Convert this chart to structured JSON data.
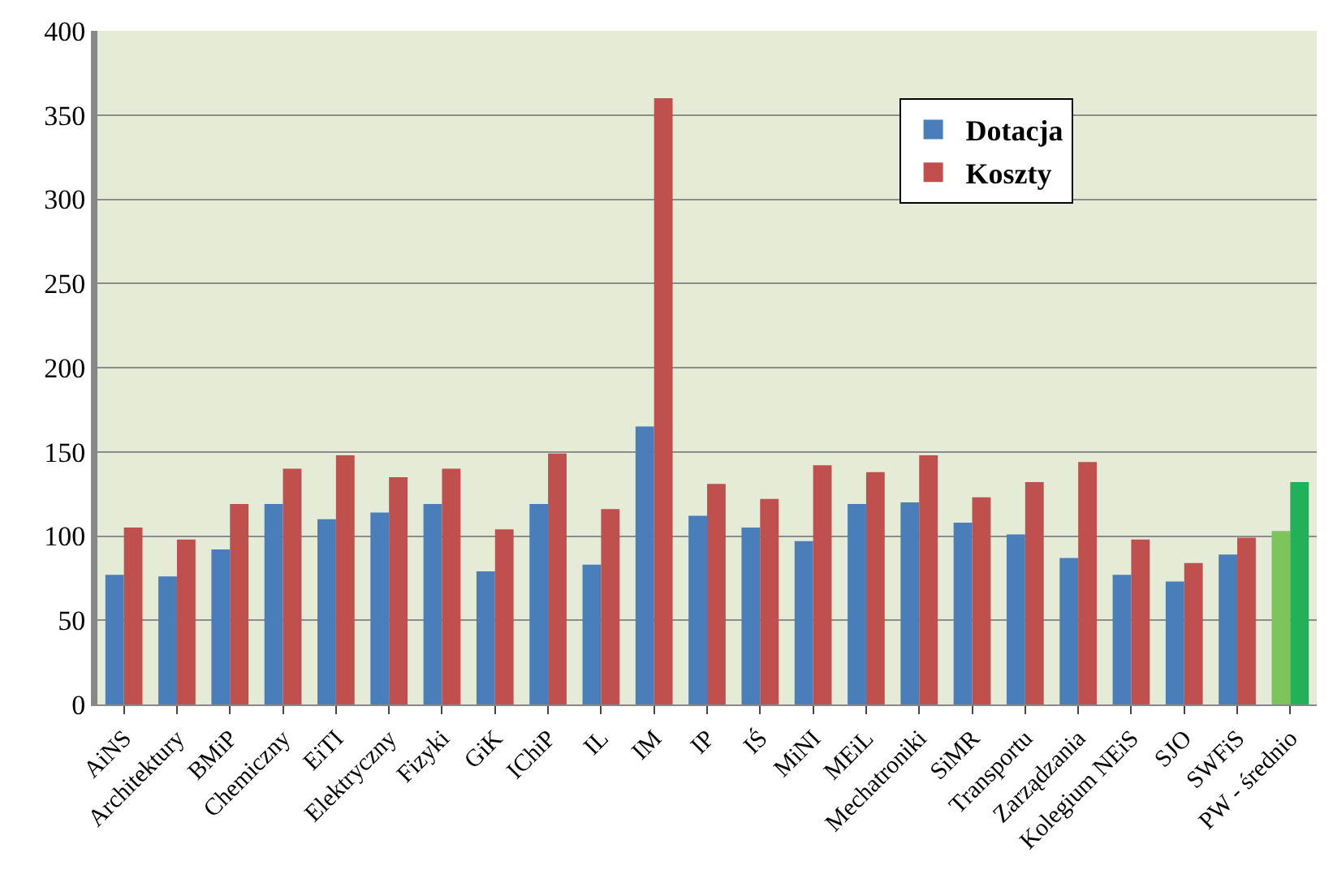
{
  "chart_data": {
    "type": "bar",
    "categories": [
      "AiNS",
      "Architektury",
      "BMiP",
      "Chemiczny",
      "EiTI",
      "Elektryczny",
      "Fizyki",
      "GiK",
      "IChiP",
      "IL",
      "IM",
      "IP",
      "IŚ",
      "MiNI",
      "MEiL",
      "Mechatroniki",
      "SiMR",
      "Transportu",
      "Zarządzania",
      "Kolegium NEiS",
      "SJO",
      "SWFiS",
      "PW - średnio"
    ],
    "series": [
      {
        "name": "Dotacja",
        "color": "#4a7ebb",
        "colors": [
          null,
          null,
          null,
          null,
          null,
          null,
          null,
          null,
          null,
          null,
          null,
          null,
          null,
          null,
          null,
          null,
          null,
          null,
          null,
          null,
          null,
          null,
          "#7dc45c"
        ],
        "values": [
          77,
          76,
          92,
          119,
          110,
          114,
          119,
          79,
          119,
          83,
          165,
          112,
          105,
          97,
          119,
          120,
          108,
          101,
          87,
          77,
          73,
          89,
          103
        ]
      },
      {
        "name": "Koszty",
        "color": "#c0504d",
        "colors": [
          null,
          null,
          null,
          null,
          null,
          null,
          null,
          null,
          null,
          null,
          null,
          null,
          null,
          null,
          null,
          null,
          null,
          null,
          null,
          null,
          null,
          null,
          "#22b05a"
        ],
        "values": [
          105,
          98,
          119,
          140,
          148,
          135,
          140,
          104,
          149,
          116,
          360,
          131,
          122,
          142,
          138,
          148,
          123,
          132,
          144,
          98,
          84,
          99,
          132
        ]
      }
    ],
    "ylim": [
      0,
      400
    ],
    "yticks": [
      0,
      50,
      100,
      150,
      200,
      250,
      300,
      350,
      400
    ],
    "grid": "y",
    "legend": "top right"
  }
}
